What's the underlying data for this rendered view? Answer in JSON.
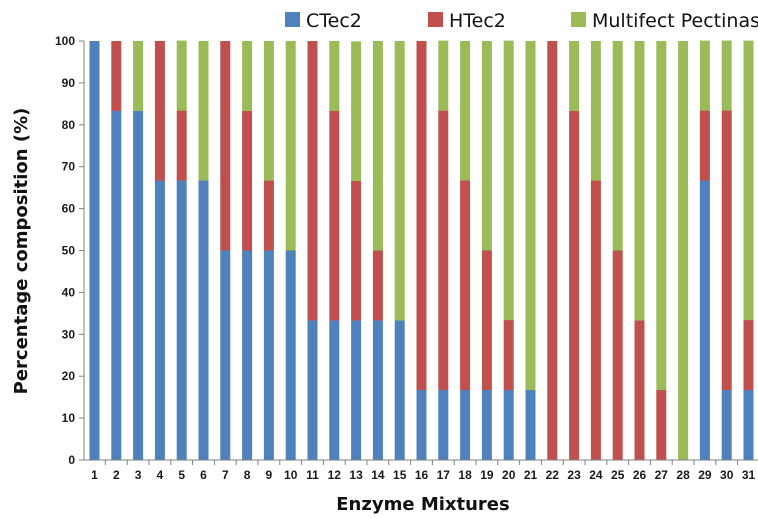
{
  "chart_data": {
    "type": "bar",
    "stacked": true,
    "title": "",
    "xlabel": "Enzyme Mixtures",
    "ylabel": "Percentage composition (%)",
    "ylim": [
      0,
      100
    ],
    "yticks": [
      0,
      10,
      20,
      30,
      40,
      50,
      60,
      70,
      80,
      90,
      100
    ],
    "grid": false,
    "legend_position": "top-right",
    "categories": [
      "1",
      "2",
      "3",
      "4",
      "5",
      "6",
      "7",
      "8",
      "9",
      "10",
      "11",
      "12",
      "13",
      "14",
      "15",
      "16",
      "17",
      "18",
      "19",
      "20",
      "21",
      "22",
      "23",
      "24",
      "25",
      "26",
      "27",
      "28",
      "29",
      "30",
      "31"
    ],
    "series": [
      {
        "name": "CTec2",
        "color": "#4f81bd",
        "values": [
          100,
          83.3,
          83.3,
          66.7,
          66.7,
          66.7,
          50,
          50,
          50,
          50,
          33.3,
          33.3,
          33.3,
          33.3,
          33.3,
          16.7,
          16.7,
          16.7,
          16.7,
          16.7,
          16.7,
          0,
          0,
          0,
          0,
          0,
          0,
          0,
          66.7,
          16.7,
          16.7
        ]
      },
      {
        "name": "HTec2",
        "color": "#c0504d",
        "values": [
          0,
          16.7,
          0,
          33.3,
          16.7,
          0,
          50,
          33.3,
          16.7,
          0,
          66.7,
          50,
          33.3,
          16.7,
          0,
          83.3,
          66.7,
          50,
          33.3,
          16.7,
          0,
          100,
          83.3,
          66.7,
          50,
          33.3,
          16.7,
          0,
          16.7,
          66.7,
          16.7
        ]
      },
      {
        "name": "Multifect Pectinase",
        "color": "#9bbb59",
        "values": [
          0,
          0,
          16.7,
          0,
          16.7,
          33.3,
          0,
          16.7,
          33.3,
          50,
          0,
          16.7,
          33.3,
          50,
          66.7,
          0,
          16.7,
          33.3,
          50,
          66.7,
          83.3,
          0,
          16.7,
          33.3,
          50,
          66.7,
          83.3,
          100,
          16.7,
          16.7,
          66.7
        ]
      }
    ]
  }
}
